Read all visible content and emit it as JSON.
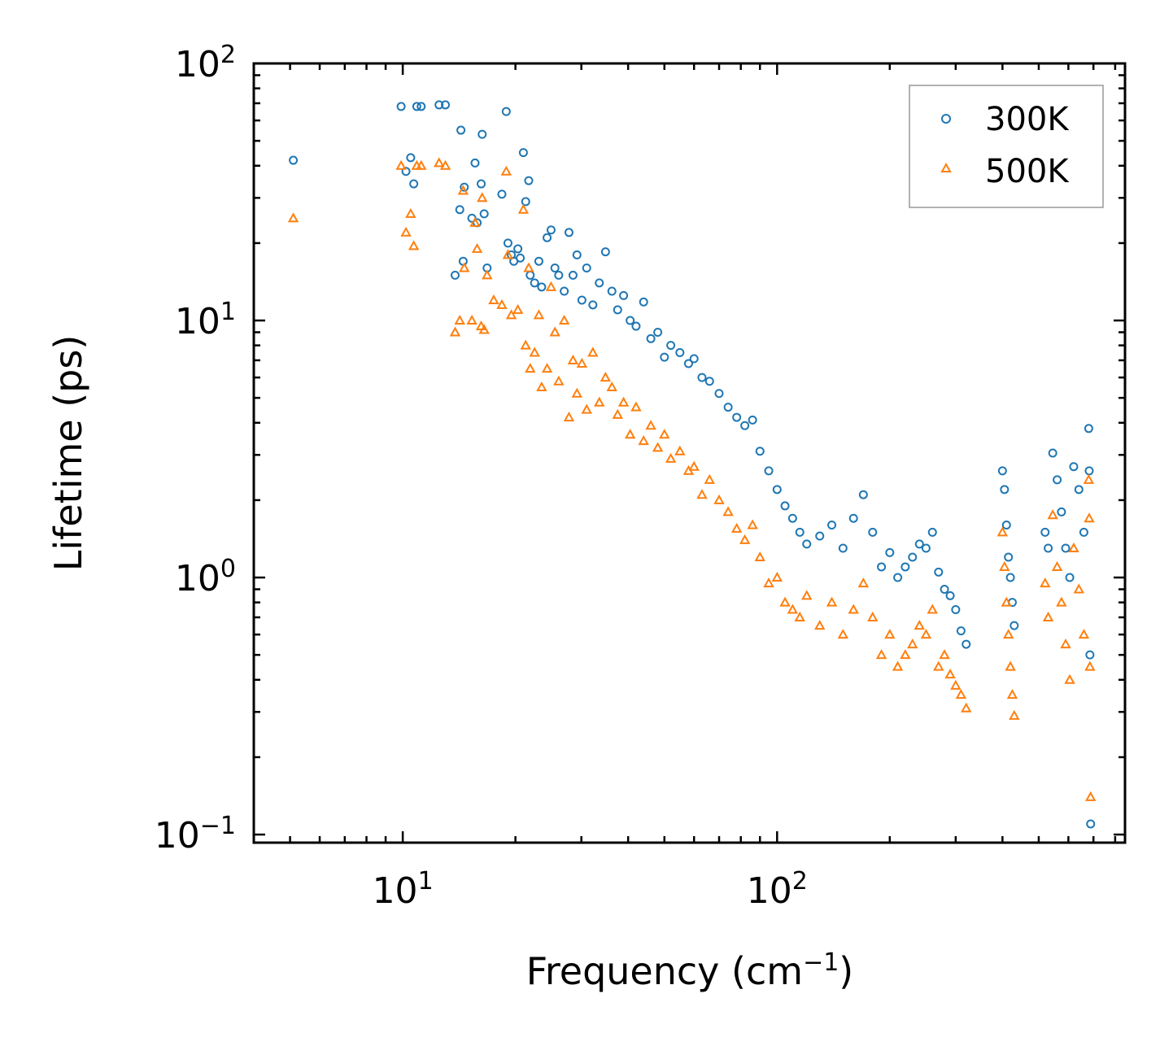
{
  "chart_data": {
    "type": "scatter",
    "title": "",
    "xlabel": "Frequency (cm",
    "xlabel_exponent": "−1",
    "xlabel_suffix": ")",
    "ylabel": "Lifetime (ps)",
    "x_scale": "log",
    "y_scale": "log",
    "xlim": [
      4,
      850
    ],
    "ylim": [
      0.093,
      100
    ],
    "x_ticks": [
      {
        "value": 10,
        "base": "10",
        "exp": "1"
      },
      {
        "value": 100,
        "base": "10",
        "exp": "2"
      }
    ],
    "y_ticks": [
      {
        "value": 0.1,
        "base": "10",
        "exp": "−1"
      },
      {
        "value": 1,
        "base": "10",
        "exp": "0"
      },
      {
        "value": 10,
        "base": "10",
        "exp": "1"
      },
      {
        "value": 100,
        "base": "10",
        "exp": "2"
      }
    ],
    "legend_position": "top-right",
    "series": [
      {
        "name": "300K",
        "color": "#1f77b4",
        "marker": "circle",
        "points": [
          [
            5.1,
            42
          ],
          [
            9.9,
            68
          ],
          [
            10.2,
            38
          ],
          [
            10.5,
            43
          ],
          [
            10.7,
            34
          ],
          [
            10.9,
            68
          ],
          [
            11.2,
            68
          ],
          [
            12.5,
            69
          ],
          [
            13,
            69
          ],
          [
            13.8,
            15
          ],
          [
            14.2,
            27
          ],
          [
            14.3,
            55
          ],
          [
            14.5,
            17
          ],
          [
            14.6,
            33
          ],
          [
            15.3,
            25
          ],
          [
            15.6,
            41
          ],
          [
            15.8,
            24
          ],
          [
            16.2,
            34
          ],
          [
            16.3,
            53
          ],
          [
            16.5,
            26
          ],
          [
            16.8,
            16
          ],
          [
            18.4,
            31
          ],
          [
            18.9,
            65
          ],
          [
            19.1,
            20
          ],
          [
            19.5,
            18
          ],
          [
            19.8,
            17
          ],
          [
            20.3,
            19
          ],
          [
            20.6,
            17.5
          ],
          [
            21.0,
            45
          ],
          [
            21.3,
            29
          ],
          [
            21.7,
            35
          ],
          [
            21.9,
            15
          ],
          [
            22.5,
            14
          ],
          [
            23.1,
            17
          ],
          [
            23.5,
            13.5
          ],
          [
            24.3,
            21
          ],
          [
            24.9,
            22.5
          ],
          [
            25.5,
            16
          ],
          [
            26.1,
            15
          ],
          [
            27.0,
            13
          ],
          [
            27.8,
            22
          ],
          [
            28.5,
            15
          ],
          [
            29.2,
            18
          ],
          [
            30.1,
            12
          ],
          [
            31.0,
            16
          ],
          [
            32.2,
            11.5
          ],
          [
            33.5,
            14
          ],
          [
            34.8,
            18.5
          ],
          [
            36.2,
            13
          ],
          [
            37.5,
            11
          ],
          [
            38.9,
            12.5
          ],
          [
            40.5,
            10
          ],
          [
            42.0,
            9.5
          ],
          [
            44.0,
            11.8
          ],
          [
            46.0,
            8.5
          ],
          [
            48.0,
            9
          ],
          [
            50.0,
            7.2
          ],
          [
            52.0,
            8
          ],
          [
            55.0,
            7.5
          ],
          [
            58.0,
            6.8
          ],
          [
            60.0,
            7.1
          ],
          [
            63.0,
            6
          ],
          [
            66.0,
            5.8
          ],
          [
            70.0,
            5.2
          ],
          [
            74.0,
            4.6
          ],
          [
            78.0,
            4.2
          ],
          [
            82.0,
            3.9
          ],
          [
            86.0,
            4.1
          ],
          [
            90.0,
            3.1
          ],
          [
            95.0,
            2.6
          ],
          [
            100,
            2.2
          ],
          [
            105,
            1.9
          ],
          [
            110,
            1.7
          ],
          [
            115,
            1.5
          ],
          [
            120,
            1.35
          ],
          [
            130,
            1.45
          ],
          [
            140,
            1.6
          ],
          [
            150,
            1.3
          ],
          [
            160,
            1.7
          ],
          [
            170,
            2.1
          ],
          [
            180,
            1.5
          ],
          [
            190,
            1.1
          ],
          [
            200,
            1.25
          ],
          [
            210,
            1.0
          ],
          [
            220,
            1.1
          ],
          [
            230,
            1.2
          ],
          [
            240,
            1.35
          ],
          [
            250,
            1.3
          ],
          [
            260,
            1.5
          ],
          [
            270,
            1.05
          ],
          [
            280,
            0.9
          ],
          [
            290,
            0.85
          ],
          [
            300,
            0.75
          ],
          [
            310,
            0.62
          ],
          [
            320,
            0.55
          ],
          [
            400,
            2.6
          ],
          [
            405,
            2.2
          ],
          [
            410,
            1.6
          ],
          [
            415,
            1.2
          ],
          [
            420,
            1.0
          ],
          [
            425,
            0.8
          ],
          [
            430,
            0.65
          ],
          [
            520,
            1.5
          ],
          [
            530,
            1.3
          ],
          [
            545,
            3.05
          ],
          [
            560,
            2.4
          ],
          [
            575,
            1.8
          ],
          [
            590,
            1.3
          ],
          [
            605,
            1.0
          ],
          [
            620,
            2.7
          ],
          [
            640,
            2.2
          ],
          [
            660,
            1.5
          ],
          [
            680,
            3.8
          ],
          [
            682,
            2.6
          ],
          [
            685,
            0.5
          ],
          [
            688,
            0.11
          ]
        ]
      },
      {
        "name": "500K",
        "color": "#ff7f0e",
        "marker": "triangle",
        "points": [
          [
            5.1,
            25
          ],
          [
            9.9,
            40
          ],
          [
            10.2,
            22
          ],
          [
            10.5,
            26
          ],
          [
            10.7,
            19.5
          ],
          [
            10.9,
            40
          ],
          [
            11.2,
            40
          ],
          [
            12.5,
            41
          ],
          [
            13,
            40
          ],
          [
            13.8,
            9
          ],
          [
            14.2,
            10
          ],
          [
            14.5,
            32
          ],
          [
            14.6,
            16
          ],
          [
            15.3,
            10
          ],
          [
            15.6,
            24
          ],
          [
            15.8,
            19
          ],
          [
            16.2,
            9.5
          ],
          [
            16.3,
            30
          ],
          [
            16.5,
            9.2
          ],
          [
            16.8,
            15
          ],
          [
            17.5,
            12
          ],
          [
            18.4,
            11.5
          ],
          [
            18.9,
            38
          ],
          [
            19.1,
            18
          ],
          [
            19.5,
            10.5
          ],
          [
            20.3,
            11
          ],
          [
            21.0,
            27
          ],
          [
            21.3,
            8
          ],
          [
            21.7,
            16
          ],
          [
            21.9,
            6.5
          ],
          [
            22.5,
            7.5
          ],
          [
            23.1,
            10.5
          ],
          [
            23.5,
            5.5
          ],
          [
            24.3,
            6.5
          ],
          [
            24.9,
            13.5
          ],
          [
            25.5,
            9
          ],
          [
            26.1,
            5.8
          ],
          [
            27.0,
            10
          ],
          [
            27.8,
            4.2
          ],
          [
            28.5,
            7
          ],
          [
            29.2,
            5.2
          ],
          [
            30.1,
            6.8
          ],
          [
            31.0,
            4.5
          ],
          [
            32.2,
            7.5
          ],
          [
            33.5,
            4.8
          ],
          [
            34.8,
            6
          ],
          [
            36.2,
            5.5
          ],
          [
            37.5,
            4.3
          ],
          [
            38.9,
            4.8
          ],
          [
            40.5,
            3.6
          ],
          [
            42.0,
            4.6
          ],
          [
            44.0,
            3.4
          ],
          [
            46.0,
            3.9
          ],
          [
            48.0,
            3.2
          ],
          [
            50.0,
            3.6
          ],
          [
            52.0,
            2.9
          ],
          [
            55.0,
            3.1
          ],
          [
            58.0,
            2.6
          ],
          [
            60.0,
            2.7
          ],
          [
            63.0,
            2.1
          ],
          [
            66.0,
            2.4
          ],
          [
            70.0,
            2.0
          ],
          [
            74.0,
            1.8
          ],
          [
            78.0,
            1.55
          ],
          [
            82.0,
            1.4
          ],
          [
            86.0,
            1.6
          ],
          [
            90.0,
            1.2
          ],
          [
            95.0,
            0.95
          ],
          [
            100,
            1.0
          ],
          [
            105,
            0.8
          ],
          [
            110,
            0.75
          ],
          [
            115,
            0.7
          ],
          [
            120,
            0.85
          ],
          [
            130,
            0.65
          ],
          [
            140,
            0.8
          ],
          [
            150,
            0.6
          ],
          [
            160,
            0.75
          ],
          [
            170,
            0.95
          ],
          [
            180,
            0.7
          ],
          [
            190,
            0.5
          ],
          [
            200,
            0.6
          ],
          [
            210,
            0.45
          ],
          [
            220,
            0.5
          ],
          [
            230,
            0.55
          ],
          [
            240,
            0.65
          ],
          [
            250,
            0.6
          ],
          [
            260,
            0.75
          ],
          [
            270,
            0.45
          ],
          [
            280,
            0.5
          ],
          [
            290,
            0.42
          ],
          [
            300,
            0.38
          ],
          [
            310,
            0.35
          ],
          [
            320,
            0.31
          ],
          [
            400,
            1.5
          ],
          [
            405,
            1.1
          ],
          [
            410,
            0.8
          ],
          [
            415,
            0.6
          ],
          [
            420,
            0.45
          ],
          [
            425,
            0.35
          ],
          [
            430,
            0.29
          ],
          [
            520,
            0.95
          ],
          [
            530,
            0.7
          ],
          [
            545,
            1.75
          ],
          [
            560,
            1.1
          ],
          [
            575,
            0.8
          ],
          [
            590,
            0.55
          ],
          [
            605,
            0.4
          ],
          [
            620,
            1.3
          ],
          [
            640,
            0.9
          ],
          [
            660,
            0.6
          ],
          [
            680,
            2.4
          ],
          [
            682,
            1.7
          ],
          [
            685,
            0.45
          ],
          [
            688,
            0.14
          ]
        ]
      }
    ]
  }
}
